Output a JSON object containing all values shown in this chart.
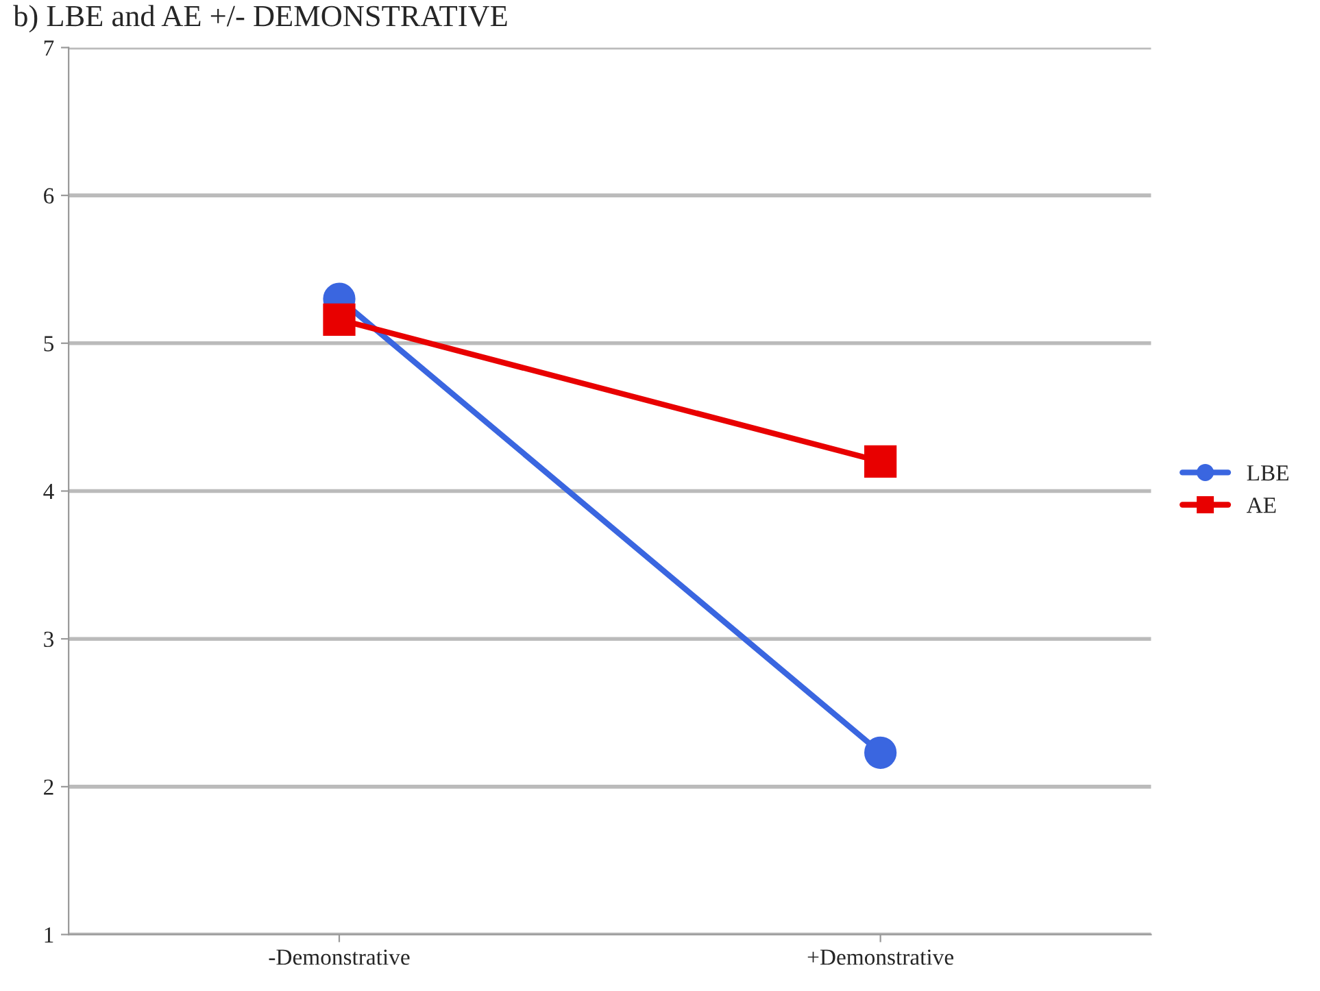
{
  "chart_data": {
    "type": "line",
    "title": "b) LBE and AE +/- DEMONSTRATIVE",
    "categories": [
      "-Demonstrative",
      "+Demonstrative"
    ],
    "series": [
      {
        "name": "LBE",
        "color": "#3a66e0",
        "values": [
          5.3,
          2.23
        ],
        "marker": "circle"
      },
      {
        "name": "AE",
        "color": "#e80000",
        "values": [
          5.16,
          4.2
        ],
        "marker": "square"
      }
    ],
    "ylim": [
      1,
      7
    ],
    "yticks": [
      1,
      2,
      3,
      4,
      5,
      6,
      7
    ],
    "grid": "y",
    "legend": "right"
  }
}
